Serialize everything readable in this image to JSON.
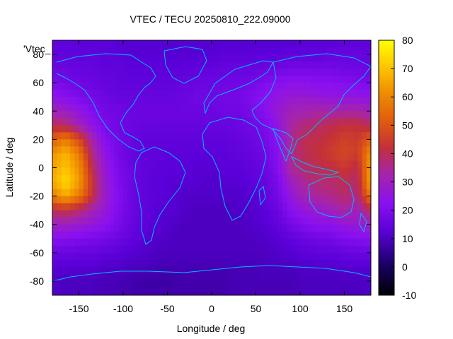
{
  "chart_data": {
    "type": "heatmap",
    "title": "VTEC / TECU 20250810_222.09000",
    "xlabel": "Longitude / deg",
    "ylabel": "Latitude / deg",
    "legend_key": "'Vtec_",
    "xlim": [
      -180,
      180
    ],
    "ylim": [
      -90,
      90
    ],
    "xticks": [
      -150,
      -100,
      -50,
      0,
      50,
      100,
      150
    ],
    "yticks": [
      -80,
      -60,
      -40,
      -20,
      0,
      20,
      40,
      60,
      80
    ],
    "colorbar": {
      "range": [
        -10,
        80
      ],
      "ticks": [
        -10,
        0,
        10,
        20,
        30,
        40,
        50,
        60,
        70,
        80
      ]
    },
    "grid_lon": [
      -180,
      -165,
      -150,
      -135,
      -120,
      -105,
      -90,
      -75,
      -60,
      -45,
      -30,
      -15,
      0,
      15,
      30,
      45,
      60,
      75,
      90,
      105,
      120,
      135,
      150,
      165,
      180
    ],
    "grid_lat": [
      87.5,
      80,
      70,
      60,
      50,
      40,
      30,
      20,
      10,
      0,
      -10,
      -20,
      -30,
      -40,
      -50,
      -60,
      -70,
      -80,
      -87.5
    ],
    "vtec": [
      [
        14,
        14,
        13,
        13,
        13,
        12,
        12,
        12,
        12,
        12,
        12,
        12,
        12,
        12,
        12,
        12,
        12,
        12,
        12,
        13,
        13,
        13,
        14,
        14,
        14
      ],
      [
        14,
        14,
        14,
        14,
        13,
        13,
        12,
        12,
        12,
        12,
        12,
        12,
        12,
        13,
        13,
        13,
        13,
        13,
        14,
        14,
        14,
        15,
        15,
        15,
        14
      ],
      [
        16,
        16,
        15,
        15,
        14,
        14,
        13,
        13,
        13,
        13,
        13,
        14,
        14,
        15,
        15,
        15,
        16,
        17,
        18,
        18,
        18,
        18,
        17,
        17,
        16
      ],
      [
        19,
        18,
        17,
        16,
        15,
        14,
        14,
        14,
        14,
        14,
        15,
        16,
        16,
        17,
        17,
        18,
        20,
        22,
        23,
        23,
        22,
        22,
        21,
        20,
        19
      ],
      [
        24,
        22,
        20,
        18,
        16,
        15,
        15,
        15,
        15,
        15,
        16,
        17,
        17,
        18,
        18,
        20,
        23,
        25,
        27,
        27,
        26,
        25,
        25,
        25,
        24
      ],
      [
        31,
        29,
        25,
        21,
        18,
        17,
        16,
        16,
        16,
        16,
        16,
        16,
        16,
        17,
        17,
        19,
        22,
        27,
        31,
        32,
        33,
        33,
        33,
        33,
        31
      ],
      [
        39,
        38,
        31,
        24,
        19,
        17,
        16,
        15,
        15,
        15,
        15,
        15,
        15,
        15,
        16,
        17,
        19,
        25,
        34,
        37,
        39,
        40,
        42,
        42,
        39
      ],
      [
        52,
        58,
        48,
        32,
        21,
        18,
        15,
        14,
        14,
        14,
        14,
        14,
        14,
        14,
        15,
        16,
        18,
        23,
        35,
        40,
        41,
        43,
        46,
        44,
        52
      ],
      [
        62,
        68,
        58,
        36,
        24,
        18,
        15,
        14,
        14,
        13,
        13,
        13,
        13,
        13,
        14,
        15,
        17,
        22,
        36,
        40,
        42,
        45,
        47,
        45,
        62
      ],
      [
        65,
        70,
        62,
        40,
        26,
        19,
        16,
        14,
        13,
        13,
        13,
        12,
        12,
        13,
        13,
        14,
        16,
        21,
        35,
        38,
        40,
        41,
        44,
        40,
        65
      ],
      [
        66,
        74,
        64,
        43,
        27,
        20,
        16,
        14,
        13,
        12,
        12,
        12,
        11,
        12,
        12,
        13,
        15,
        19,
        30,
        35,
        38,
        38,
        40,
        38,
        66
      ],
      [
        58,
        66,
        58,
        42,
        28,
        21,
        16,
        14,
        13,
        12,
        11,
        11,
        11,
        11,
        11,
        12,
        14,
        18,
        26,
        32,
        34,
        36,
        38,
        36,
        58
      ],
      [
        40,
        42,
        38,
        32,
        26,
        20,
        16,
        14,
        12,
        12,
        11,
        10,
        10,
        10,
        11,
        11,
        13,
        16,
        22,
        26,
        28,
        30,
        34,
        30,
        40
      ],
      [
        30,
        30,
        28,
        26,
        23,
        19,
        15,
        13,
        12,
        11,
        10,
        10,
        10,
        10,
        10,
        11,
        12,
        14,
        18,
        21,
        23,
        23,
        26,
        27,
        30
      ],
      [
        22,
        21,
        20,
        19,
        18,
        16,
        14,
        12,
        11,
        10,
        10,
        10,
        10,
        10,
        10,
        10,
        11,
        12,
        14,
        16,
        17,
        18,
        20,
        21,
        22
      ],
      [
        16,
        16,
        15,
        15,
        14,
        13,
        12,
        11,
        10,
        10,
        10,
        10,
        10,
        10,
        10,
        10,
        10,
        11,
        12,
        13,
        14,
        14,
        15,
        16,
        16
      ],
      [
        12,
        12,
        12,
        12,
        11,
        11,
        10,
        10,
        9,
        9,
        9,
        9,
        9,
        9,
        9,
        9,
        10,
        10,
        10,
        11,
        11,
        11,
        12,
        12,
        12
      ],
      [
        11,
        10,
        10,
        10,
        9,
        9,
        8,
        7,
        7,
        7,
        8,
        8,
        8,
        8,
        9,
        9,
        9,
        9,
        9,
        10,
        10,
        10,
        10,
        10,
        11
      ],
      [
        11,
        10,
        10,
        10,
        9,
        9,
        8,
        8,
        8,
        8,
        8,
        8,
        8,
        8,
        9,
        9,
        9,
        9,
        9,
        10,
        10,
        10,
        10,
        10,
        11
      ]
    ]
  }
}
